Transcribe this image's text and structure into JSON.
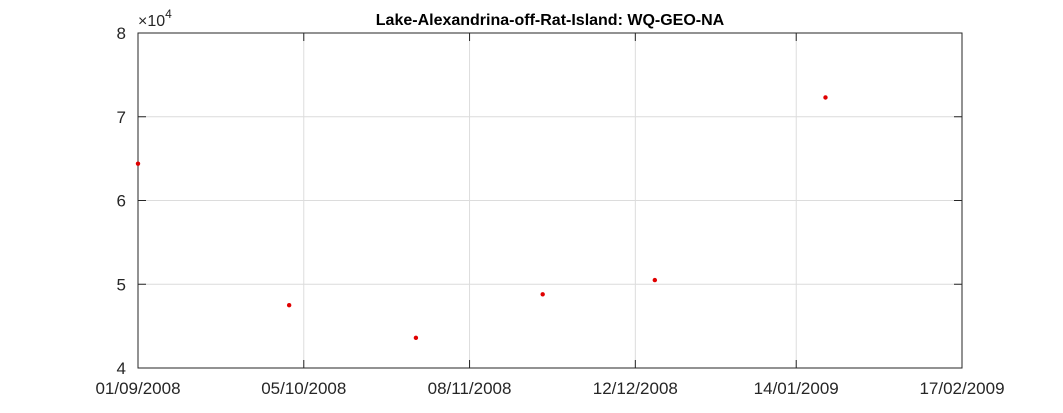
{
  "chart_data": {
    "type": "scatter",
    "title": "Lake-Alexandrina-off-Rat-Island: WQ-GEO-NA",
    "xlabel": "",
    "ylabel": "",
    "y_multiplier_label": "×10",
    "y_multiplier_exponent": "4",
    "x_axis_type": "date",
    "xlim": [
      "2008-09-01",
      "2009-02-17"
    ],
    "ylim": [
      4,
      8
    ],
    "grid": true,
    "marker_color": "#e00000",
    "x_ticks": [
      {
        "value": "2008-09-01",
        "label": "01/09/2008"
      },
      {
        "value": "2008-10-05",
        "label": "05/10/2008"
      },
      {
        "value": "2008-11-08",
        "label": "08/11/2008"
      },
      {
        "value": "2008-12-12",
        "label": "12/12/2008"
      },
      {
        "value": "2009-01-14",
        "label": "14/01/2009"
      },
      {
        "value": "2009-02-17",
        "label": "17/02/2009"
      }
    ],
    "y_ticks": [
      {
        "value": 4,
        "label": "4"
      },
      {
        "value": 5,
        "label": "5"
      },
      {
        "value": 6,
        "label": "6"
      },
      {
        "value": 7,
        "label": "7"
      },
      {
        "value": 8,
        "label": "8"
      }
    ],
    "series": [
      {
        "points": [
          {
            "x": "2008-09-01",
            "y": 6.44
          },
          {
            "x": "2008-10-02",
            "y": 4.75
          },
          {
            "x": "2008-10-28",
            "y": 4.36
          },
          {
            "x": "2008-11-23",
            "y": 4.88
          },
          {
            "x": "2008-12-16",
            "y": 5.05
          },
          {
            "x": "2009-01-20",
            "y": 7.23
          }
        ]
      }
    ]
  }
}
